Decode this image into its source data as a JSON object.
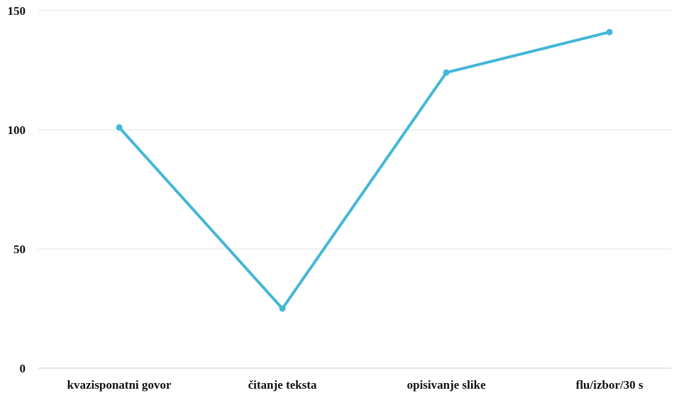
{
  "chart_data": {
    "type": "line",
    "categories": [
      "kvazisponatni govor",
      "čitanje teksta",
      "opisivanje slike",
      "flu/izbor/30 s"
    ],
    "series": [
      {
        "values": [
          101,
          25,
          124,
          141
        ]
      }
    ],
    "ylim": [
      0,
      150
    ],
    "yticks": [
      0,
      50,
      100,
      150
    ],
    "grid": true,
    "legend": "none",
    "colors": {
      "line": "#45b7d6"
    }
  }
}
